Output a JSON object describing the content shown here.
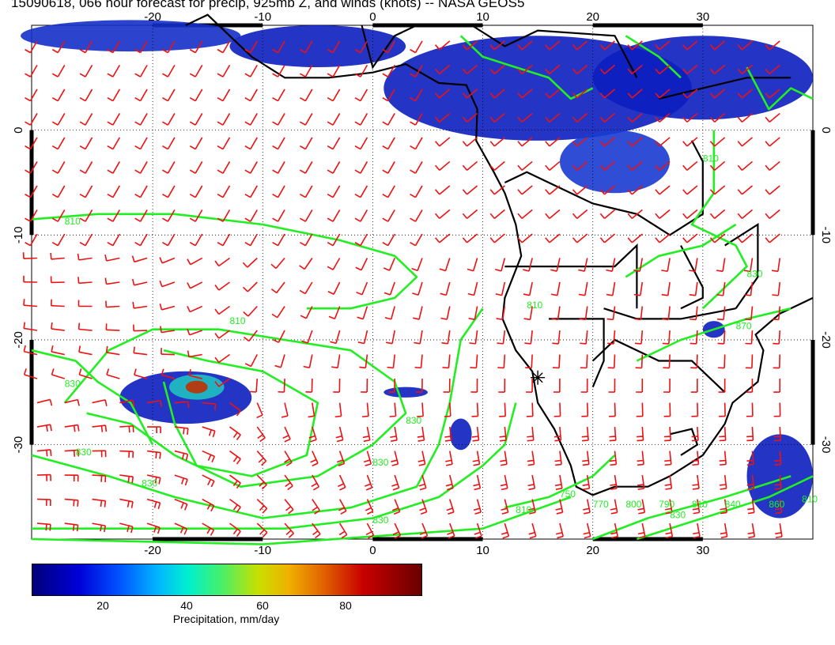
{
  "title": "15090618, 066 hour forecast for precip, 925mb Z, and winds (knots) -- NASA GEOS5",
  "map": {
    "lon_range": [
      -31,
      40
    ],
    "lat_range": [
      -39,
      10
    ],
    "lon_ticks_bottom": [
      "-20",
      "-10",
      "0",
      "10",
      "20",
      "30"
    ],
    "lon_ticks_top": [
      "-20",
      "-10",
      "0",
      "10",
      "20",
      "30"
    ],
    "lat_ticks_left": [
      "0",
      "-10",
      "-20",
      "-30"
    ],
    "lat_ticks_right": [
      "0",
      "-10",
      "-20",
      "-30"
    ],
    "grid": "dotted, every 10 degrees",
    "contour_color": "#22ee22",
    "wind_barb_color": "#ee1111",
    "coast_color": "#000000",
    "contour_labels": [
      "810",
      "810",
      "830",
      "830",
      "830",
      "830",
      "830",
      "830",
      "810",
      "830",
      "870",
      "810",
      "830",
      "810",
      "750",
      "770",
      "800",
      "790",
      "810",
      "840",
      "860",
      "810"
    ],
    "marker": "station cross"
  },
  "colorbar": {
    "labels": [
      "20",
      "40",
      "60",
      "80"
    ],
    "title": "Precipitation, mm/day",
    "colors": [
      "#00007a",
      "#0000d8",
      "#0050ff",
      "#00b4ff",
      "#00f0d0",
      "#40f070",
      "#c8e000",
      "#f0b000",
      "#e06000",
      "#c80000",
      "#6a0000"
    ]
  }
}
